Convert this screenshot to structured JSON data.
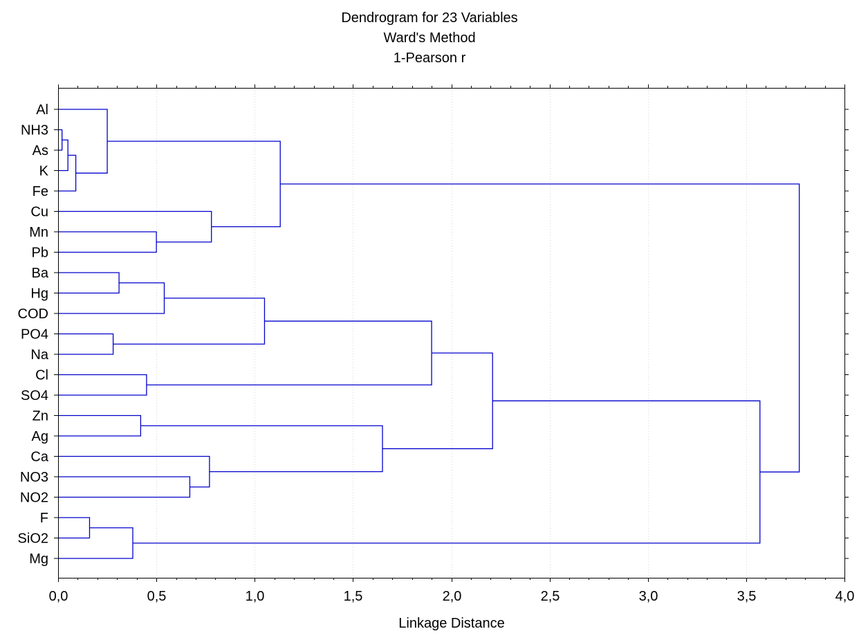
{
  "chart_data": {
    "type": "dendrogram",
    "title": "Dendrogram for 23 Variables",
    "subtitle": "Ward's Method",
    "subtitle2": "1-Pearson r",
    "xlabel": "Linkage Distance",
    "xlim": [
      0,
      4
    ],
    "xticks": [
      "0,0",
      "0,5",
      "1,0",
      "1,5",
      "2,0",
      "2,5",
      "3,0",
      "3,5",
      "4,0"
    ],
    "xtick_values": [
      0,
      0.5,
      1,
      1.5,
      2,
      2.5,
      3,
      3.5,
      4
    ],
    "grid": true,
    "leaves": [
      "Al",
      "NH3",
      "As",
      "K",
      "Fe",
      "Cu",
      "Mn",
      "Pb",
      "Ba",
      "Hg",
      "COD",
      "PO4",
      "Na",
      "Cl",
      "SO4",
      "Zn",
      "Ag",
      "Ca",
      "NO3",
      "NO2",
      "F",
      "SiO2",
      "Mg"
    ],
    "merges": [
      {
        "id": "m1",
        "a": "NH3",
        "b": "As",
        "height": 0.02
      },
      {
        "id": "m2",
        "a": "m1",
        "b": "K",
        "height": 0.05
      },
      {
        "id": "m3",
        "a": "m2",
        "b": "Fe",
        "height": 0.09
      },
      {
        "id": "m4",
        "a": "Al",
        "b": "m3",
        "height": 0.25
      },
      {
        "id": "m5",
        "a": "Mn",
        "b": "Pb",
        "height": 0.5
      },
      {
        "id": "m6",
        "a": "Cu",
        "b": "m5",
        "height": 0.78
      },
      {
        "id": "m7",
        "a": "m4",
        "b": "m6",
        "height": 1.13
      },
      {
        "id": "m8",
        "a": "Ba",
        "b": "Hg",
        "height": 0.31
      },
      {
        "id": "m9",
        "a": "m8",
        "b": "COD",
        "height": 0.54
      },
      {
        "id": "m10",
        "a": "PO4",
        "b": "Na",
        "height": 0.28
      },
      {
        "id": "m11",
        "a": "m9",
        "b": "m10",
        "height": 1.05
      },
      {
        "id": "m12",
        "a": "Cl",
        "b": "SO4",
        "height": 0.45
      },
      {
        "id": "m13",
        "a": "m11",
        "b": "m12",
        "height": 1.9
      },
      {
        "id": "m14",
        "a": "Zn",
        "b": "Ag",
        "height": 0.42
      },
      {
        "id": "m15",
        "a": "NO3",
        "b": "NO2",
        "height": 0.67
      },
      {
        "id": "m16",
        "a": "Ca",
        "b": "m15",
        "height": 0.77
      },
      {
        "id": "m17",
        "a": "m14",
        "b": "m16",
        "height": 1.65
      },
      {
        "id": "m18",
        "a": "m13",
        "b": "m17",
        "height": 2.21
      },
      {
        "id": "m19",
        "a": "F",
        "b": "SiO2",
        "height": 0.16
      },
      {
        "id": "m20",
        "a": "m19",
        "b": "Mg",
        "height": 0.38
      },
      {
        "id": "m21",
        "a": "m18",
        "b": "m20",
        "height": 3.57
      },
      {
        "id": "m22",
        "a": "m7",
        "b": "m21",
        "height": 3.77
      }
    ],
    "colors": {
      "links": "#0000cc",
      "frame": "#000000",
      "grid": "#d8d8d8"
    }
  }
}
